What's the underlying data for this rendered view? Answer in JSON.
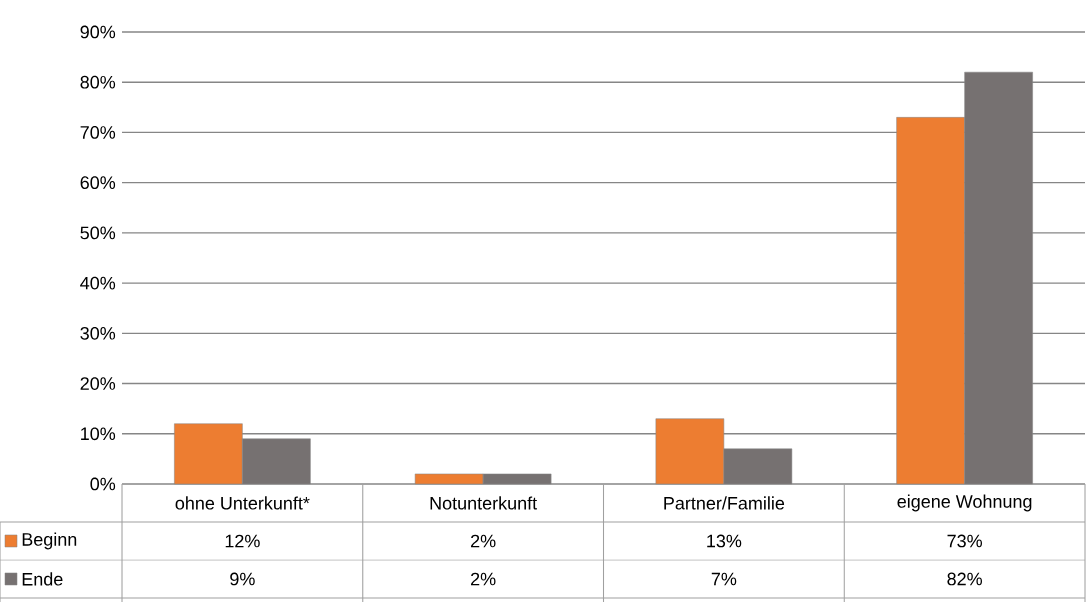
{
  "chart_data": {
    "type": "bar",
    "categories": [
      "ohne Unterkunft*",
      "Notunterkunft",
      "Partner/Familie",
      "eigene Wohnung"
    ],
    "series": [
      {
        "name": "Beginn",
        "color": "#ed7d31",
        "values": [
          12,
          2,
          13,
          73
        ],
        "value_labels": [
          "12%",
          "2%",
          "13%",
          "73%"
        ]
      },
      {
        "name": "Ende",
        "color": "#767171",
        "values": [
          9,
          2,
          7,
          82
        ],
        "value_labels": [
          "9%",
          "2%",
          "7%",
          "82%"
        ]
      }
    ],
    "ylim": [
      0,
      90
    ],
    "yticks": [
      {
        "value": 0,
        "label": "0%"
      },
      {
        "value": 10,
        "label": "10%"
      },
      {
        "value": 20,
        "label": "20%"
      },
      {
        "value": 30,
        "label": "30%"
      },
      {
        "value": 40,
        "label": "40%"
      },
      {
        "value": 50,
        "label": "50%"
      },
      {
        "value": 60,
        "label": "60%"
      },
      {
        "value": 70,
        "label": "70%"
      },
      {
        "value": 80,
        "label": "80%"
      },
      {
        "value": 90,
        "label": "90%"
      }
    ],
    "grid": "y",
    "legend": "bottom"
  }
}
